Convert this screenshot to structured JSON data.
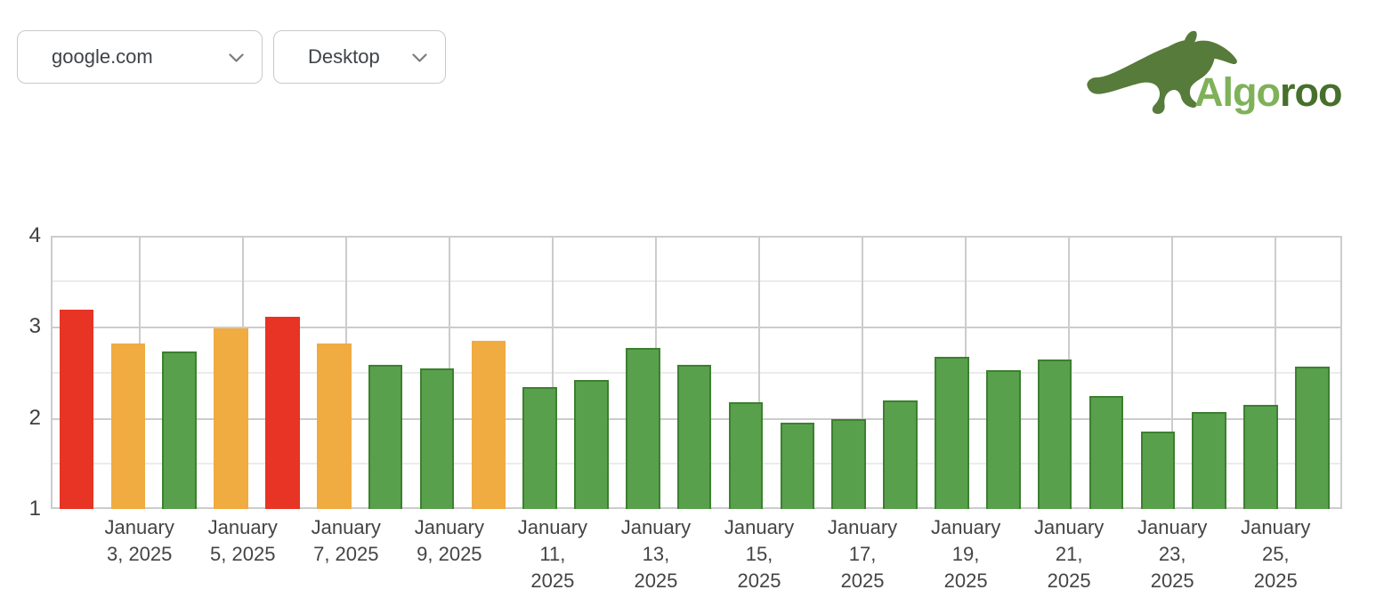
{
  "header": {
    "site_dropdown": {
      "value": "google.com"
    },
    "device_dropdown": {
      "value": "Desktop"
    },
    "logo": {
      "brand": "Algoroo",
      "text_light": "Algo",
      "text_dark": "roo",
      "kangaroo_color": "#567b3a",
      "light_green": "#7fb159",
      "dark_green": "#46702b"
    }
  },
  "chart_data": {
    "type": "bar",
    "title": "",
    "xlabel": "",
    "ylabel": "",
    "ylim": [
      1,
      4
    ],
    "yticks": [
      1,
      2,
      3,
      4
    ],
    "minor_gridlines": [
      1.5,
      2.5,
      3.5
    ],
    "grid": "on",
    "legend_position": "none",
    "palette": {
      "red": "#e73425",
      "orange": "#f0ab41",
      "green": "#58a04c",
      "green_border": "#3d8030",
      "grid_major": "#cccccc",
      "grid_minor": "#ebebeb",
      "axis_text": "#444444"
    },
    "points": [
      {
        "date": "January 2, 2025",
        "value": 3.19,
        "color": "red"
      },
      {
        "date": "January 3, 2025",
        "value": 2.82,
        "color": "orange"
      },
      {
        "date": "January 4, 2025",
        "value": 2.73,
        "color": "green"
      },
      {
        "date": "January 5, 2025",
        "value": 2.98,
        "color": "orange"
      },
      {
        "date": "January 6, 2025",
        "value": 3.11,
        "color": "red"
      },
      {
        "date": "January 7, 2025",
        "value": 2.82,
        "color": "orange"
      },
      {
        "date": "January 8, 2025",
        "value": 2.58,
        "color": "green"
      },
      {
        "date": "January 9, 2025",
        "value": 2.54,
        "color": "green"
      },
      {
        "date": "January 10, 2025",
        "value": 2.85,
        "color": "orange"
      },
      {
        "date": "January 11, 2025",
        "value": 2.34,
        "color": "green"
      },
      {
        "date": "January 12, 2025",
        "value": 2.42,
        "color": "green"
      },
      {
        "date": "January 13, 2025",
        "value": 2.77,
        "color": "green"
      },
      {
        "date": "January 14, 2025",
        "value": 2.58,
        "color": "green"
      },
      {
        "date": "January 15, 2025",
        "value": 2.17,
        "color": "green"
      },
      {
        "date": "January 16, 2025",
        "value": 1.95,
        "color": "green"
      },
      {
        "date": "January 17, 2025",
        "value": 1.99,
        "color": "green"
      },
      {
        "date": "January 18, 2025",
        "value": 2.19,
        "color": "green"
      },
      {
        "date": "January 19, 2025",
        "value": 2.67,
        "color": "green"
      },
      {
        "date": "January 20, 2025",
        "value": 2.52,
        "color": "green"
      },
      {
        "date": "January 21, 2025",
        "value": 2.64,
        "color": "green"
      },
      {
        "date": "January 22, 2025",
        "value": 2.24,
        "color": "green"
      },
      {
        "date": "January 23, 2025",
        "value": 1.85,
        "color": "green"
      },
      {
        "date": "January 24, 2025",
        "value": 2.07,
        "color": "green"
      },
      {
        "date": "January 25, 2025",
        "value": 2.14,
        "color": "green"
      },
      {
        "date": "January 26, 2025",
        "value": 2.56,
        "color": "green"
      }
    ],
    "x_tick_labels": [
      {
        "text": "January 3, 2025",
        "lines": [
          "January",
          "3, 2025"
        ]
      },
      {
        "text": "January 5, 2025",
        "lines": [
          "January",
          "5, 2025"
        ]
      },
      {
        "text": "January 7, 2025",
        "lines": [
          "January",
          "7, 2025"
        ]
      },
      {
        "text": "January 9, 2025",
        "lines": [
          "January",
          "9, 2025"
        ]
      },
      {
        "text": "January 11, 2025",
        "lines": [
          "January",
          "11,",
          "2025"
        ]
      },
      {
        "text": "January 13, 2025",
        "lines": [
          "January",
          "13,",
          "2025"
        ]
      },
      {
        "text": "January 15, 2025",
        "lines": [
          "January",
          "15,",
          "2025"
        ]
      },
      {
        "text": "January 17, 2025",
        "lines": [
          "January",
          "17,",
          "2025"
        ]
      },
      {
        "text": "January 19, 2025",
        "lines": [
          "January",
          "19,",
          "2025"
        ]
      },
      {
        "text": "January 21, 2025",
        "lines": [
          "January",
          "21,",
          "2025"
        ]
      },
      {
        "text": "January 23, 2025",
        "lines": [
          "January",
          "23,",
          "2025"
        ]
      },
      {
        "text": "January 25, 2025",
        "lines": [
          "January",
          "25,",
          "2025"
        ]
      }
    ]
  }
}
